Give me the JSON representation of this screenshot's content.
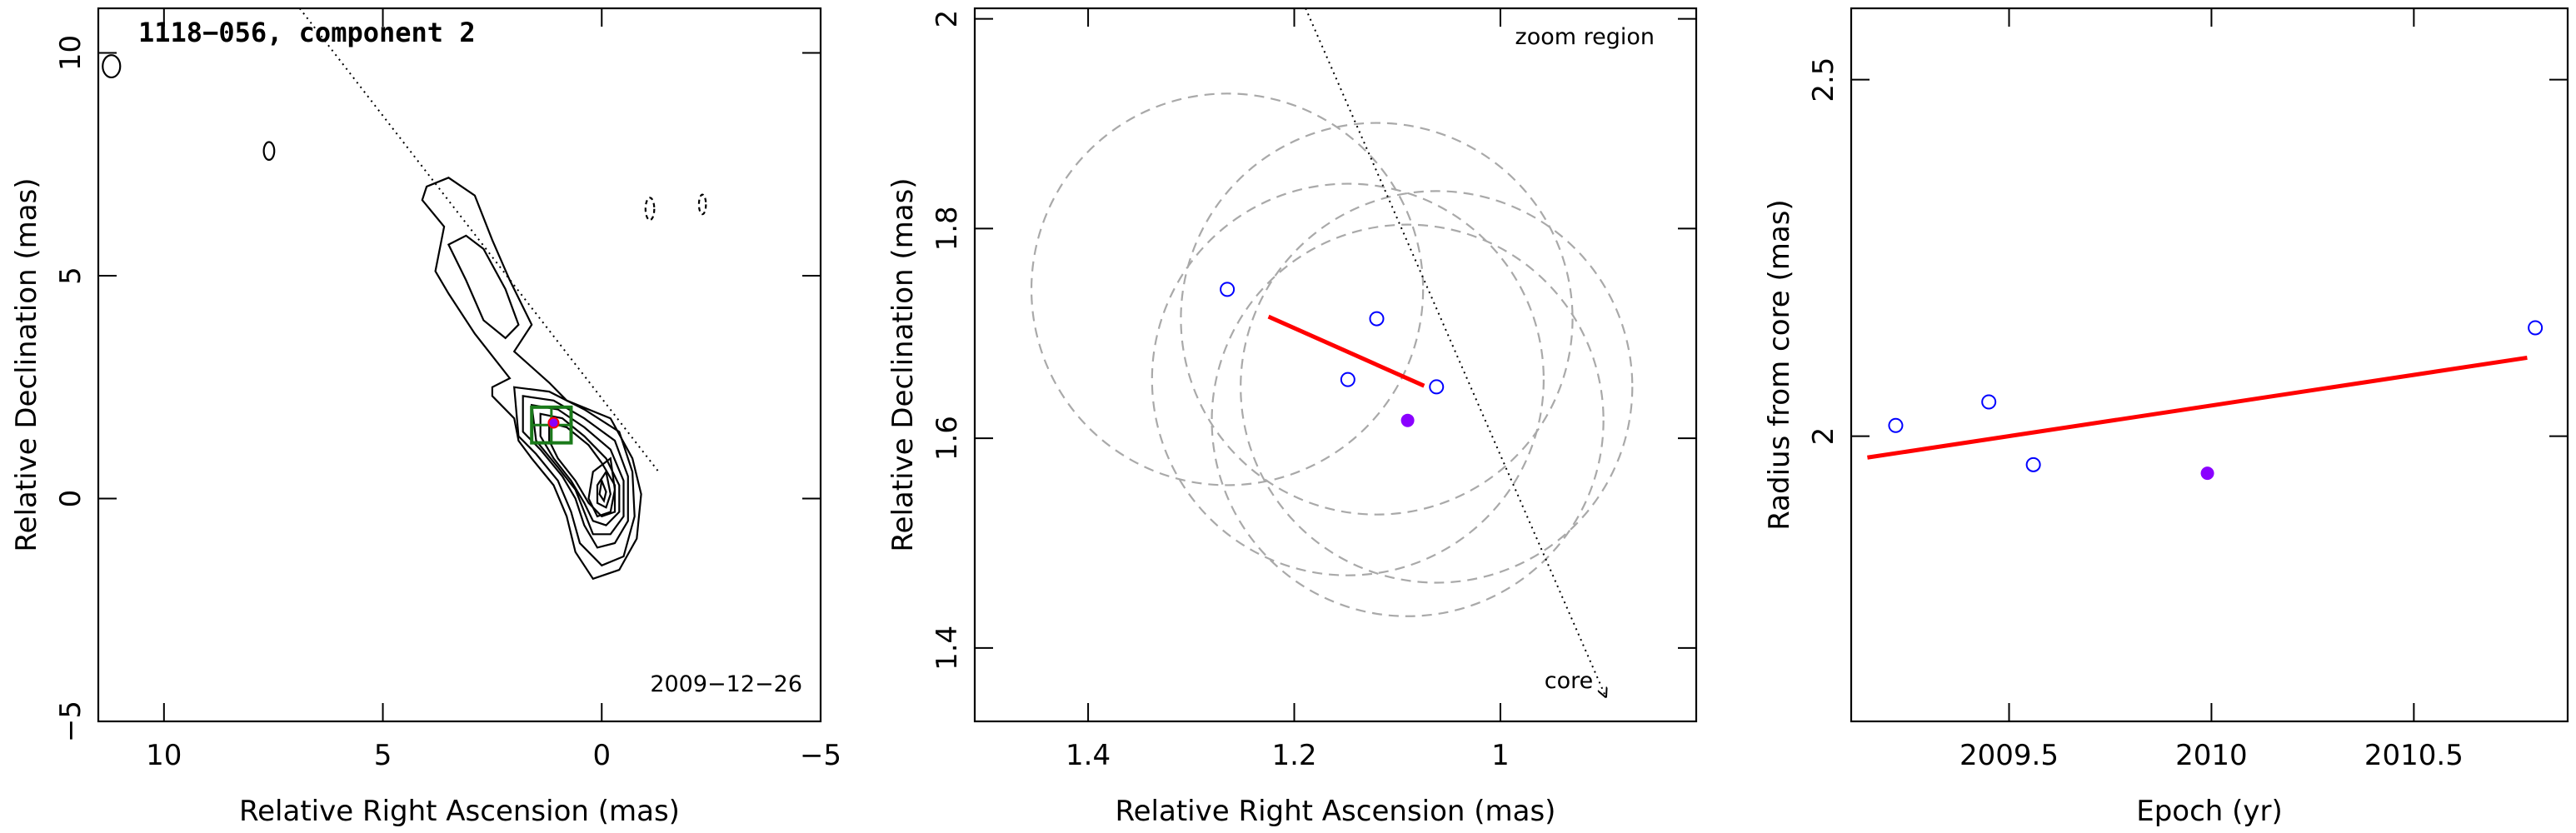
{
  "colors": {
    "fit_line": "#ff0000",
    "open_marker": "#0000ff",
    "filled_marker": "#8a00ff",
    "box": "#1a7a1a",
    "dashed_circle": "#a9a9a9"
  },
  "chart_data": [
    {
      "type": "contour",
      "title": "1118−056, component 2",
      "date_label": "2009−12−26",
      "xlabel": "Relative Right Ascension (mas)",
      "ylabel": "Relative Declination (mas)",
      "xlim": [
        11.5,
        -5
      ],
      "ylim": [
        -5,
        11
      ],
      "xticks": [
        10,
        5,
        0,
        -5
      ],
      "xtick_labels": [
        "10",
        "5",
        "0",
        "−5"
      ],
      "yticks": [
        -5,
        0,
        5,
        10
      ],
      "ytick_labels": [
        "−5",
        "0",
        "5",
        "10"
      ],
      "jet_direction_line": [
        [
          6.9,
          11
        ],
        [
          -1.3,
          0.6
        ]
      ],
      "zoom_box": {
        "x": [
          1.6,
          0.7
        ],
        "y": [
          1.25,
          2.05
        ]
      },
      "marker": {
        "x": 1.1,
        "y": 1.7
      },
      "contours": [
        [
          [
            3.6,
            6.1
          ],
          [
            4.1,
            6.7
          ],
          [
            4.0,
            7.0
          ],
          [
            3.5,
            7.2
          ],
          [
            2.9,
            6.8
          ],
          [
            2.5,
            5.8
          ],
          [
            2.1,
            4.9
          ],
          [
            1.6,
            3.9
          ],
          [
            2.0,
            3.3
          ],
          [
            1.2,
            2.6
          ],
          [
            0.8,
            2.2
          ],
          [
            -0.2,
            1.8
          ],
          [
            -0.7,
            0.9
          ],
          [
            -0.9,
            0.1
          ],
          [
            -0.8,
            -0.9
          ],
          [
            -0.4,
            -1.6
          ],
          [
            0.2,
            -1.8
          ],
          [
            0.6,
            -1.2
          ],
          [
            0.8,
            -0.4
          ],
          [
            1.1,
            0.3
          ],
          [
            1.6,
            0.9
          ],
          [
            1.9,
            1.3
          ],
          [
            2.0,
            1.8
          ],
          [
            2.5,
            2.3
          ],
          [
            2.5,
            2.5
          ],
          [
            2.1,
            2.7
          ],
          [
            2.9,
            3.7
          ],
          [
            3.5,
            4.6
          ],
          [
            3.8,
            5.1
          ],
          [
            3.6,
            6.1
          ]
        ],
        [
          [
            3.5,
            5.7
          ],
          [
            3.1,
            4.9
          ],
          [
            2.7,
            4.0
          ],
          [
            2.2,
            3.6
          ],
          [
            1.9,
            3.9
          ],
          [
            2.2,
            4.7
          ],
          [
            2.7,
            5.6
          ],
          [
            3.1,
            5.9
          ],
          [
            3.5,
            5.7
          ]
        ],
        [
          [
            2.0,
            2.5
          ],
          [
            1.2,
            2.4
          ],
          [
            0.4,
            2.0
          ],
          [
            -0.4,
            1.5
          ],
          [
            -0.7,
            0.6
          ],
          [
            -0.75,
            -0.4
          ],
          [
            -0.5,
            -1.3
          ],
          [
            0.0,
            -1.5
          ],
          [
            0.5,
            -1.0
          ],
          [
            0.7,
            -0.3
          ],
          [
            1.0,
            0.4
          ],
          [
            1.5,
            1.0
          ],
          [
            1.9,
            1.4
          ],
          [
            2.0,
            2.5
          ]
        ],
        [
          [
            1.8,
            2.3
          ],
          [
            1.1,
            2.2
          ],
          [
            0.4,
            1.8
          ],
          [
            -0.3,
            1.3
          ],
          [
            -0.6,
            0.5
          ],
          [
            -0.6,
            -0.5
          ],
          [
            -0.3,
            -1.0
          ],
          [
            0.1,
            -1.1
          ],
          [
            0.4,
            -0.6
          ],
          [
            0.6,
            0.0
          ],
          [
            0.9,
            0.5
          ],
          [
            1.4,
            1.1
          ],
          [
            1.8,
            1.5
          ],
          [
            1.8,
            2.3
          ]
        ],
        [
          [
            1.6,
            2.1
          ],
          [
            1.0,
            2.0
          ],
          [
            0.4,
            1.6
          ],
          [
            -0.2,
            1.1
          ],
          [
            -0.5,
            0.4
          ],
          [
            -0.5,
            -0.4
          ],
          [
            -0.2,
            -0.8
          ],
          [
            0.2,
            -0.8
          ],
          [
            0.4,
            -0.3
          ],
          [
            0.6,
            0.2
          ],
          [
            1.0,
            0.7
          ],
          [
            1.5,
            1.3
          ],
          [
            1.6,
            2.1
          ]
        ],
        [
          [
            1.4,
            1.9
          ],
          [
            0.9,
            1.8
          ],
          [
            0.4,
            1.4
          ],
          [
            -0.1,
            0.9
          ],
          [
            -0.4,
            0.3
          ],
          [
            -0.4,
            -0.3
          ],
          [
            -0.1,
            -0.6
          ],
          [
            0.2,
            -0.5
          ],
          [
            0.4,
            -0.1
          ],
          [
            0.7,
            0.4
          ],
          [
            1.1,
            0.9
          ],
          [
            1.4,
            1.4
          ],
          [
            1.4,
            1.9
          ]
        ],
        [
          [
            1.2,
            1.7
          ],
          [
            0.8,
            1.6
          ],
          [
            0.3,
            1.2
          ],
          [
            0.0,
            0.8
          ],
          [
            -0.3,
            0.3
          ],
          [
            -0.3,
            -0.3
          ],
          [
            0.0,
            -0.4
          ],
          [
            0.3,
            -0.1
          ],
          [
            0.6,
            0.4
          ],
          [
            1.0,
            0.9
          ],
          [
            1.2,
            1.3
          ],
          [
            1.2,
            1.7
          ]
        ],
        [
          [
            -0.2,
            0.9
          ],
          [
            0.2,
            0.6
          ],
          [
            0.3,
            0.0
          ],
          [
            0.1,
            -0.4
          ],
          [
            -0.2,
            -0.3
          ],
          [
            -0.3,
            0.2
          ],
          [
            -0.2,
            0.9
          ]
        ],
        [
          [
            -0.1,
            0.6
          ],
          [
            0.1,
            0.3
          ],
          [
            0.1,
            -0.1
          ],
          [
            -0.1,
            -0.2
          ],
          [
            -0.2,
            0.1
          ],
          [
            -0.1,
            0.6
          ]
        ],
        [
          [
            0.0,
            0.4
          ],
          [
            0.05,
            0.1
          ],
          [
            -0.05,
            -0.05
          ],
          [
            -0.1,
            0.15
          ],
          [
            0.0,
            0.4
          ]
        ]
      ],
      "small_contours": [
        {
          "x": 7.6,
          "y": 7.8,
          "rx": 0.12,
          "ry": 0.2
        },
        {
          "x": 11.2,
          "y": 9.7,
          "rx": 0.2,
          "ry": 0.25
        },
        {
          "x": -1.1,
          "y": 6.5,
          "rx": 0.1,
          "ry": 0.25,
          "dashed": true
        },
        {
          "x": -2.3,
          "y": 6.6,
          "rx": 0.08,
          "ry": 0.22,
          "dashed": true
        }
      ]
    },
    {
      "type": "scatter",
      "annotation": "zoom region",
      "core_label": "core",
      "xlabel": "Relative Right Ascension (mas)",
      "ylabel": "Relative Declination (mas)",
      "xlim": [
        1.51,
        0.81
      ],
      "ylim": [
        1.33,
        2.01
      ],
      "xticks": [
        1.4,
        1.2,
        1.0
      ],
      "xtick_labels": [
        "1.4",
        "1.2",
        "1"
      ],
      "yticks": [
        1.4,
        1.6,
        1.8,
        2.0
      ],
      "ytick_labels": [
        "1.4",
        "1.6",
        "1.8",
        "2"
      ],
      "points_open": [
        {
          "x": 1.265,
          "y": 1.742
        },
        {
          "x": 1.12,
          "y": 1.714
        },
        {
          "x": 1.148,
          "y": 1.656
        },
        {
          "x": 1.062,
          "y": 1.649
        }
      ],
      "point_filled": {
        "x": 1.09,
        "y": 1.617
      },
      "fit_line": [
        [
          1.225,
          1.716
        ],
        [
          1.074,
          1.65
        ]
      ],
      "dashed_circles": [
        {
          "x": 1.265,
          "y": 1.742,
          "r": 0.19
        },
        {
          "x": 1.12,
          "y": 1.714,
          "r": 0.19
        },
        {
          "x": 1.148,
          "y": 1.656,
          "r": 0.19
        },
        {
          "x": 1.062,
          "y": 1.649,
          "r": 0.19
        },
        {
          "x": 1.09,
          "y": 1.617,
          "r": 0.19
        }
      ],
      "arrow": [
        [
          1.189,
          2.01
        ],
        [
          0.898,
          1.354
        ]
      ]
    },
    {
      "type": "scatter",
      "xlabel": "Epoch (yr)",
      "ylabel": "Radius from core (mas)",
      "xlim": [
        2009.11,
        2010.88
      ],
      "ylim": [
        1.6,
        2.6
      ],
      "xticks": [
        2009.5,
        2010.0,
        2010.5
      ],
      "xtick_labels": [
        "2009.5",
        "2010",
        "2010.5"
      ],
      "yticks": [
        2.0,
        2.5
      ],
      "ytick_labels": [
        "2",
        "2.5"
      ],
      "points_open": [
        {
          "x": 2009.22,
          "y": 2.015
        },
        {
          "x": 2009.45,
          "y": 2.048
        },
        {
          "x": 2009.56,
          "y": 1.96
        },
        {
          "x": 2010.8,
          "y": 2.152
        }
      ],
      "point_filled": {
        "x": 2009.99,
        "y": 1.948
      },
      "fit_line": [
        [
          2009.15,
          1.97
        ],
        [
          2010.78,
          2.11
        ]
      ]
    }
  ]
}
